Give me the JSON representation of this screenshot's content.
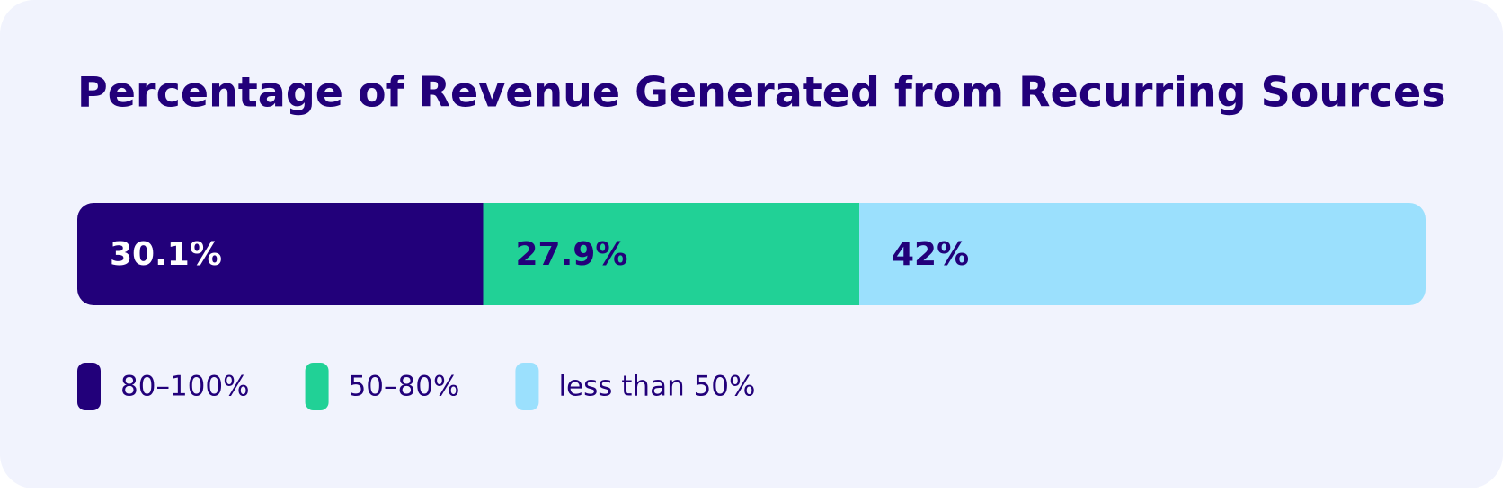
{
  "chart_data": {
    "type": "stacked_bar",
    "title": "Percentage of Revenue Generated from Recurring Sources",
    "series": [
      {
        "name": "80–100%",
        "color": "#22007a",
        "values": [
          30.1
        ],
        "value_labels": [
          "30.1%"
        ]
      },
      {
        "name": "50–80%",
        "color": "#21d196",
        "values": [
          27.9
        ],
        "value_labels": [
          "27.9%"
        ]
      },
      {
        "name": "less than 50%",
        "color": "#9be0fd",
        "values": [
          42
        ],
        "value_labels": [
          "42%"
        ]
      }
    ],
    "legend": "bottom-left"
  }
}
